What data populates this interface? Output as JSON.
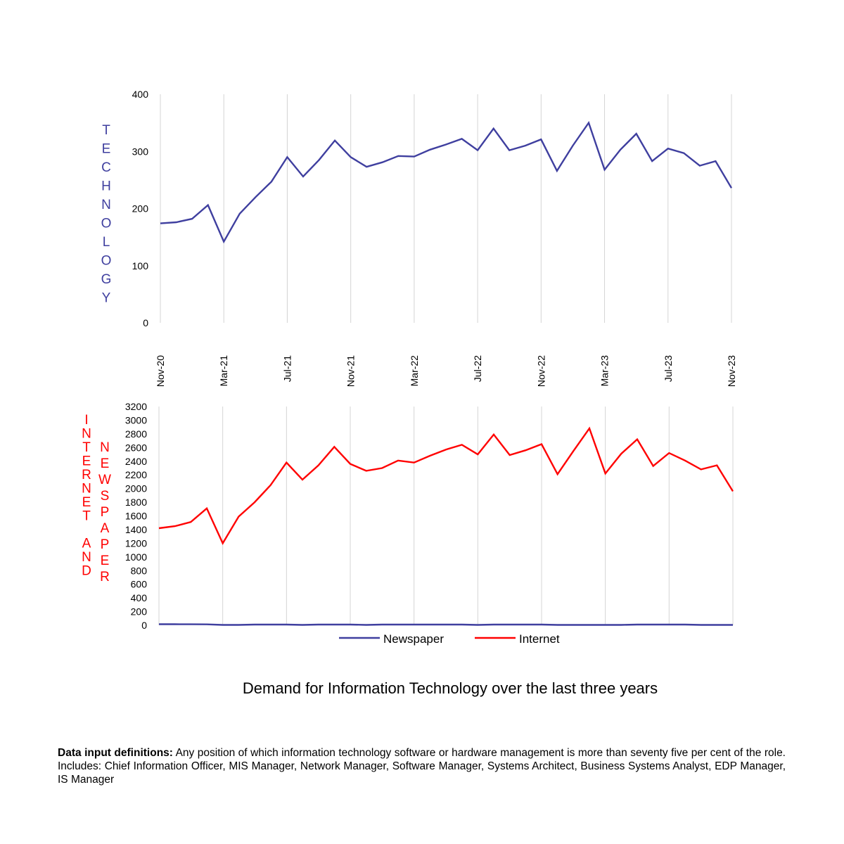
{
  "chart_data": [
    {
      "type": "line",
      "ylabel": "TECHNOLOGY",
      "ylim": [
        0,
        400
      ],
      "yticks": [
        0,
        100,
        200,
        300,
        400
      ],
      "xticks": [
        "Nov-20",
        "Mar-21",
        "Jul-21",
        "Nov-21",
        "Mar-22",
        "Jul-22",
        "Nov-22",
        "Mar-23",
        "Jul-23",
        "Nov-23"
      ],
      "x": [
        "Nov-20",
        "Dec-20",
        "Jan-21",
        "Feb-21",
        "Mar-21",
        "Apr-21",
        "May-21",
        "Jun-21",
        "Jul-21",
        "Aug-21",
        "Sep-21",
        "Oct-21",
        "Nov-21",
        "Dec-21",
        "Jan-22",
        "Feb-22",
        "Mar-22",
        "Apr-22",
        "May-22",
        "Jun-22",
        "Jul-22",
        "Aug-22",
        "Sep-22",
        "Oct-22",
        "Nov-22",
        "Dec-22",
        "Jan-23",
        "Feb-23",
        "Mar-23",
        "Apr-23",
        "May-23",
        "Jun-23",
        "Jul-23",
        "Aug-23",
        "Sep-23",
        "Oct-23",
        "Nov-23"
      ],
      "series": [
        {
          "name": "Technology",
          "color": "#3f3f9f",
          "values": [
            174,
            176,
            182,
            206,
            142,
            191,
            220,
            247,
            290,
            256,
            285,
            319,
            290,
            273,
            281,
            292,
            291,
            303,
            312,
            322,
            302,
            340,
            302,
            310,
            321,
            266,
            310,
            350,
            268,
            303,
            331,
            283,
            305,
            297,
            275,
            283,
            236
          ]
        }
      ]
    },
    {
      "type": "line",
      "ylabel": "INTERNET AND NEWSPAPER",
      "ylim": [
        0,
        3200
      ],
      "yticks": [
        0,
        200,
        400,
        600,
        800,
        1000,
        1200,
        1400,
        1600,
        1800,
        2000,
        2200,
        2400,
        2600,
        2800,
        3000,
        3200
      ],
      "xticks": [
        "Nov-20",
        "Mar-21",
        "Jul-21",
        "Nov-21",
        "Mar-22",
        "Jul-22",
        "Nov-22",
        "Mar-23",
        "Jul-23",
        "Nov-23"
      ],
      "x": [
        "Nov-20",
        "Dec-20",
        "Jan-21",
        "Feb-21",
        "Mar-21",
        "Apr-21",
        "May-21",
        "Jun-21",
        "Jul-21",
        "Aug-21",
        "Sep-21",
        "Oct-21",
        "Nov-21",
        "Dec-21",
        "Jan-22",
        "Feb-22",
        "Mar-22",
        "Apr-22",
        "May-22",
        "Jun-22",
        "Jul-22",
        "Aug-22",
        "Sep-22",
        "Oct-22",
        "Nov-22",
        "Dec-22",
        "Jan-23",
        "Feb-23",
        "Mar-23",
        "Apr-23",
        "May-23",
        "Jun-23",
        "Jul-23",
        "Aug-23",
        "Sep-23",
        "Oct-23",
        "Nov-23"
      ],
      "series": [
        {
          "name": "Newspaper",
          "color": "#3f3f9f",
          "values": [
            15,
            15,
            14,
            13,
            5,
            5,
            10,
            10,
            10,
            5,
            10,
            10,
            10,
            5,
            10,
            10,
            10,
            10,
            10,
            10,
            5,
            10,
            10,
            10,
            10,
            5,
            5,
            5,
            5,
            5,
            10,
            10,
            10,
            10,
            5,
            5,
            5
          ]
        },
        {
          "name": "Internet",
          "color": "#ff0000",
          "values": [
            1420,
            1450,
            1510,
            1710,
            1200,
            1590,
            1800,
            2050,
            2380,
            2130,
            2340,
            2610,
            2360,
            2260,
            2300,
            2410,
            2380,
            2480,
            2570,
            2640,
            2500,
            2790,
            2490,
            2560,
            2650,
            2210,
            2550,
            2880,
            2220,
            2510,
            2720,
            2330,
            2520,
            2410,
            2280,
            2340,
            1960
          ]
        }
      ]
    }
  ],
  "legend": {
    "items": [
      "Newspaper",
      "Internet"
    ]
  },
  "caption": "Demand for Information Technology over the last three years",
  "definitions": {
    "label": "Data input definitions:",
    "text": " Any position of which information technology software or hardware management is more than seventy five per cent of the role. Includes: Chief Information Officer, MIS Manager, Network Manager, Software Manager, Systems Architect, Business Systems Analyst, EDP Manager, IS Manager"
  },
  "colors": {
    "technology_label": "#3f3f9f",
    "internet_label": "#ff0000",
    "gridline": "#d4d4d4"
  }
}
